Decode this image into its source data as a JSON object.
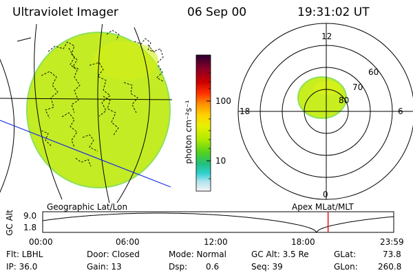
{
  "header": {
    "instrument": "Ultraviolet Imager",
    "date": "06 Sep 00",
    "time": "19:31:02 UT"
  },
  "colorbar": {
    "label": "photon cm⁻²s⁻¹",
    "tick_100": "100",
    "tick_10": "10",
    "colors": [
      "#2a0030",
      "#7a0030",
      "#cc0000",
      "#ff4000",
      "#ff9000",
      "#ffd000",
      "#e8f000",
      "#b0ea00",
      "#60d400",
      "#20c060",
      "#20d0c0",
      "#40d0e0",
      "#c0e8f0",
      "#f4f4f4"
    ]
  },
  "maps": {
    "geo_label": "Geographic Lat/Lon",
    "apex_label": "Apex MLat/MLT",
    "polar_mlt": {
      "top": "12",
      "right": "6",
      "bottom": "0",
      "left": "18"
    },
    "polar_lat": {
      "r60": "60",
      "r70": "70",
      "r80": "80"
    },
    "image_color": "#c8ee20",
    "image_edge_color": "#90e050"
  },
  "timeline": {
    "ylabel": "GC Alt",
    "y_top": "9.0",
    "y_bottom": "1.8",
    "x_ticks": [
      "00:00",
      "06:00",
      "12:00",
      "18:00",
      "23:59"
    ],
    "current_time_fraction": 0.813,
    "marker_color": "#dd0000"
  },
  "footer": {
    "flt_label": "Flt: LBHL",
    "ip_label": "IP: 36.0",
    "door_label": "Door: Closed",
    "gain_label": "Gain: 13",
    "mode_label": "Mode: Normal",
    "dsp_label": "Dsp:",
    "dsp_value": "0.6",
    "gcalt_label": "GC Alt: 3.5 Re",
    "seq_label": "Seq: 39",
    "glat_label": "GLat:",
    "glat_value": "73.8",
    "glon_label": "GLon:",
    "glon_value": "260.8"
  }
}
